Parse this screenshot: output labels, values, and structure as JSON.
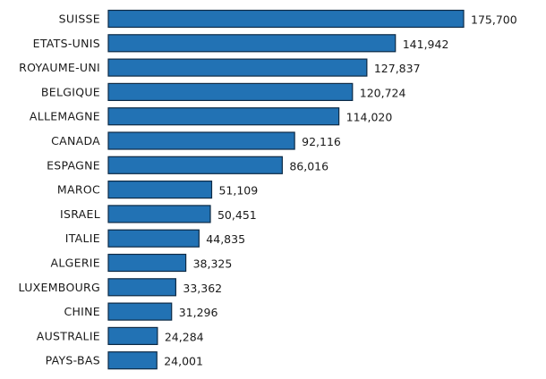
{
  "chart_data": {
    "type": "bar",
    "orientation": "horizontal",
    "categories": [
      "SUISSE",
      "ETATS-UNIS",
      "ROYAUME-UNI",
      "BELGIQUE",
      "ALLEMAGNE",
      "CANADA",
      "ESPAGNE",
      "MAROC",
      "ISRAEL",
      "ITALIE",
      "ALGERIE",
      "LUXEMBOURG",
      "CHINE",
      "AUSTRALIE",
      "PAYS-BAS"
    ],
    "values": [
      175700,
      141942,
      127837,
      120724,
      114020,
      92116,
      86016,
      51109,
      50451,
      44835,
      38325,
      33362,
      31296,
      24284,
      24001
    ],
    "value_labels": [
      "175,700",
      "141,942",
      "127,837",
      "120,724",
      "114,020",
      "92,116",
      "86,016",
      "51,109",
      "50,451",
      "44,835",
      "38,325",
      "33,362",
      "31,296",
      "24,284",
      "24,001"
    ],
    "xlim": [
      0,
      175700
    ],
    "grid": false,
    "bar_color": "#2272b4",
    "bar_edge_color": "#0d2a45",
    "text_color": "#1a1a1a"
  }
}
